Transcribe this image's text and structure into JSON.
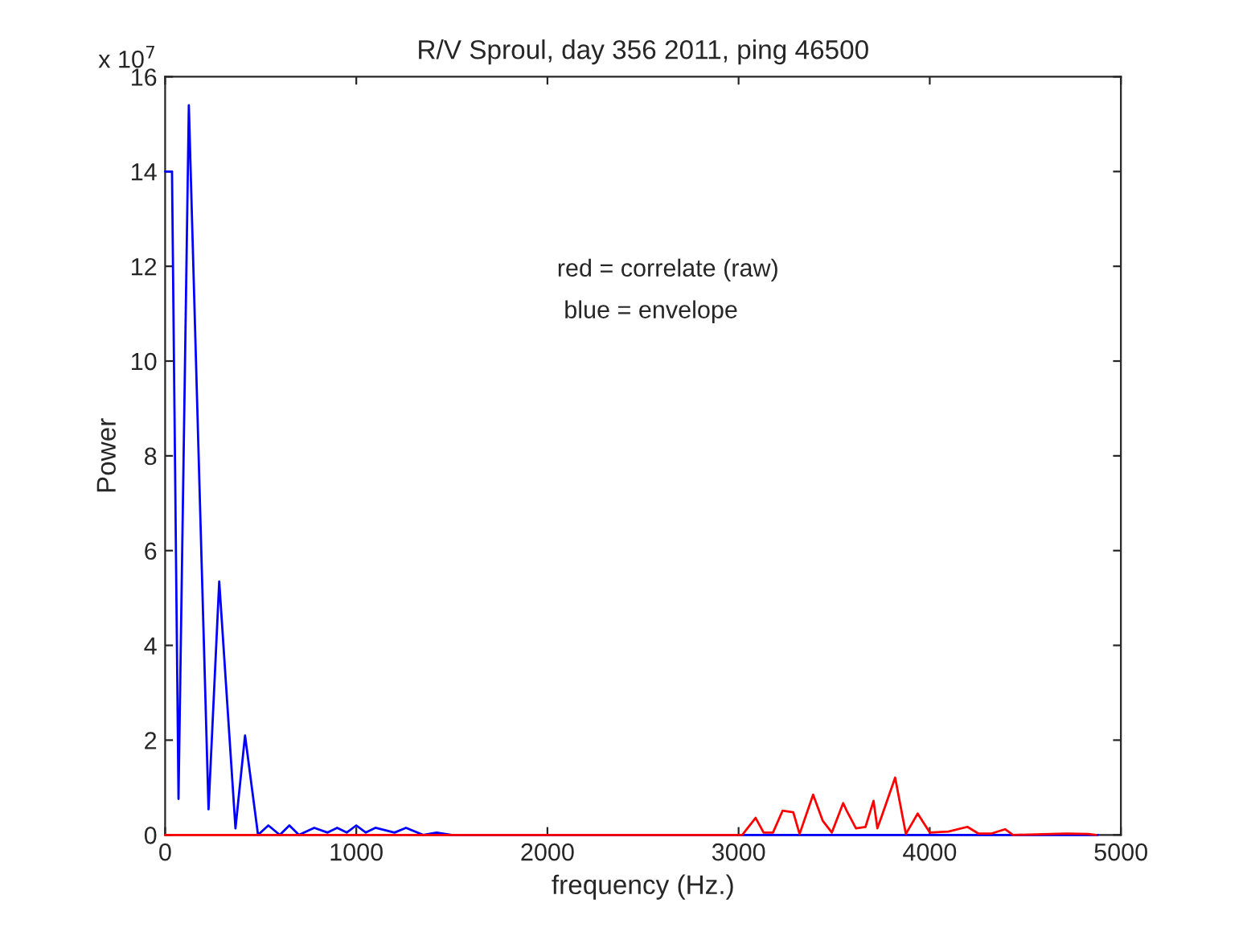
{
  "chart_data": {
    "type": "line",
    "title": "R/V Sproul, day 356 2011, ping 46500",
    "xlabel": "frequency (Hz.)",
    "ylabel": "Power",
    "annotations": [
      "x 10$^{7}$",
      "red = correlate (raw)",
      " blue = envelope"
    ],
    "series": [
      {
        "color": "#0000ff",
        "x": [
          0,
          36,
          70,
          124,
          227,
          283,
          368,
          418,
          486,
          540,
          600,
          650,
          700,
          780,
          850,
          900,
          950,
          1000,
          1050,
          1100,
          1200,
          1260,
          1350,
          1420,
          1500,
          3000,
          4880
        ],
        "values": [
          14.0,
          14.0,
          0.76,
          15.4,
          0.54,
          5.35,
          0.14,
          2.1,
          0,
          0.2,
          0,
          0.2,
          0,
          0.15,
          0.05,
          0.15,
          0.05,
          0.2,
          0.05,
          0.15,
          0.05,
          0.15,
          0,
          0.05,
          0,
          0,
          0
        ]
      },
      {
        "color": "#ff0000",
        "x": [
          0,
          2977,
          3019,
          3089,
          3131,
          3180,
          3230,
          3286,
          3319,
          3390,
          3440,
          3488,
          3547,
          3567,
          3614,
          3664,
          3706,
          3726,
          3751,
          3819,
          3875,
          3937,
          4000,
          4098,
          4197,
          4254,
          4324,
          4394,
          4436,
          4716,
          4829,
          4871
        ],
        "values": [
          0,
          0,
          0,
          0.36,
          0.05,
          0.05,
          0.51,
          0.48,
          0.02,
          0.85,
          0.3,
          0.05,
          0.67,
          0.5,
          0.14,
          0.17,
          0.72,
          0.14,
          0.42,
          1.21,
          0.02,
          0.45,
          0.05,
          0.07,
          0.17,
          0.03,
          0.03,
          0.12,
          0,
          0.03,
          0.02,
          0
        ]
      }
    ],
    "xlim": [
      0,
      5000
    ],
    "xticks": [
      0,
      1000,
      2000,
      3000,
      4000,
      5000
    ],
    "ylim": [
      0,
      16
    ],
    "yticks": [
      0,
      2,
      4,
      6,
      8,
      10,
      12,
      14,
      16
    ],
    "grid": false,
    "legend": false,
    "line_style": "solid",
    "marker": "none"
  }
}
